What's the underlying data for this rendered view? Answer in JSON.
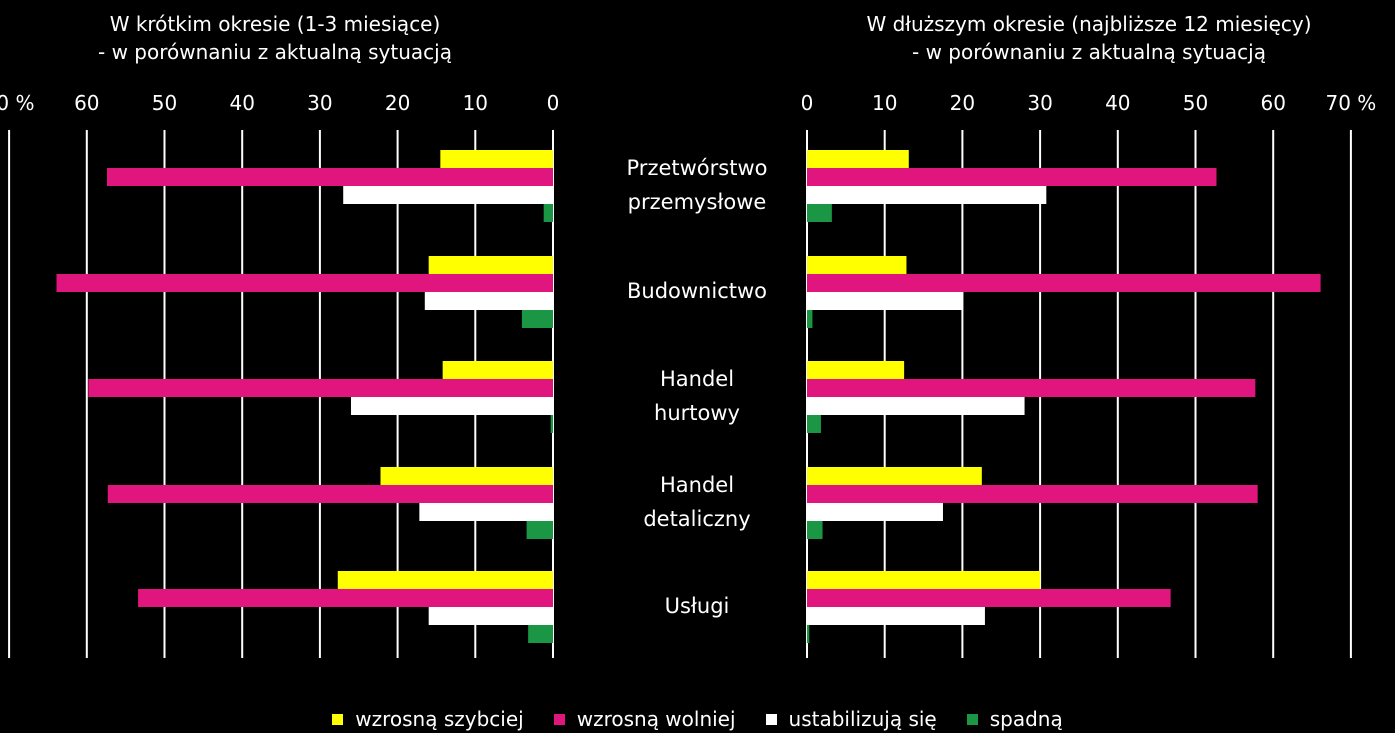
{
  "chart_data": {
    "type": "bar",
    "orientation": "horizontal",
    "categories": [
      [
        "Przetwórstwo",
        "przemysłowe"
      ],
      [
        "Budownictwo"
      ],
      [
        "Handel",
        "hurtowy"
      ],
      [
        "Handel",
        "detaliczny"
      ],
      [
        "Usługi"
      ]
    ],
    "xlim": [
      0,
      70
    ],
    "ticks": [
      "0",
      "10",
      "20",
      "30",
      "40",
      "50",
      "60",
      "70 %"
    ],
    "grid": true,
    "legend_position": "bottom",
    "legend": [
      {
        "label": "wzrosną szybciej",
        "color": "#ffff00"
      },
      {
        "label": "wzrosną wolniej",
        "color": "#e0157d"
      },
      {
        "label": "ustabilizują się",
        "color": "#ffffff"
      },
      {
        "label": "spadną",
        "color": "#1a9645"
      }
    ],
    "panels": [
      {
        "title_line1": "W krótkim okresie (1-3 miesiące)",
        "title_line2": "- w porównaniu z aktualną sytuacją",
        "direction": "left",
        "series": [
          {
            "label": "wzrosną szybciej",
            "values": [
              14.5,
              16,
              14.2,
              22.2,
              27.7
            ]
          },
          {
            "label": "wzrosną wolniej",
            "values": [
              57.4,
              63.9,
              59.8,
              57.3,
              53.4
            ]
          },
          {
            "label": "ustabilizują się",
            "values": [
              27,
              16.5,
              26,
              17.2,
              16
            ]
          },
          {
            "label": "spadną",
            "values": [
              1.2,
              4,
              0.3,
              3.4,
              3.2
            ]
          }
        ]
      },
      {
        "title_line1": "W dłuższym okresie (najbliższe 12 miesięcy)",
        "title_line2": "- w porównaniu z aktualną sytuacją",
        "direction": "right",
        "series": [
          {
            "label": "wzrosną szybciej",
            "values": [
              13.1,
              12.8,
              12.5,
              22.5,
              30
            ]
          },
          {
            "label": "wzrosną wolniej",
            "values": [
              52.7,
              66.1,
              57.7,
              58,
              46.8
            ]
          },
          {
            "label": "ustabilizują się",
            "values": [
              30.8,
              20.1,
              28,
              17.5,
              22.9
            ]
          },
          {
            "label": "spadną",
            "values": [
              3.2,
              0.7,
              1.8,
              2,
              0.3
            ]
          }
        ]
      }
    ]
  }
}
